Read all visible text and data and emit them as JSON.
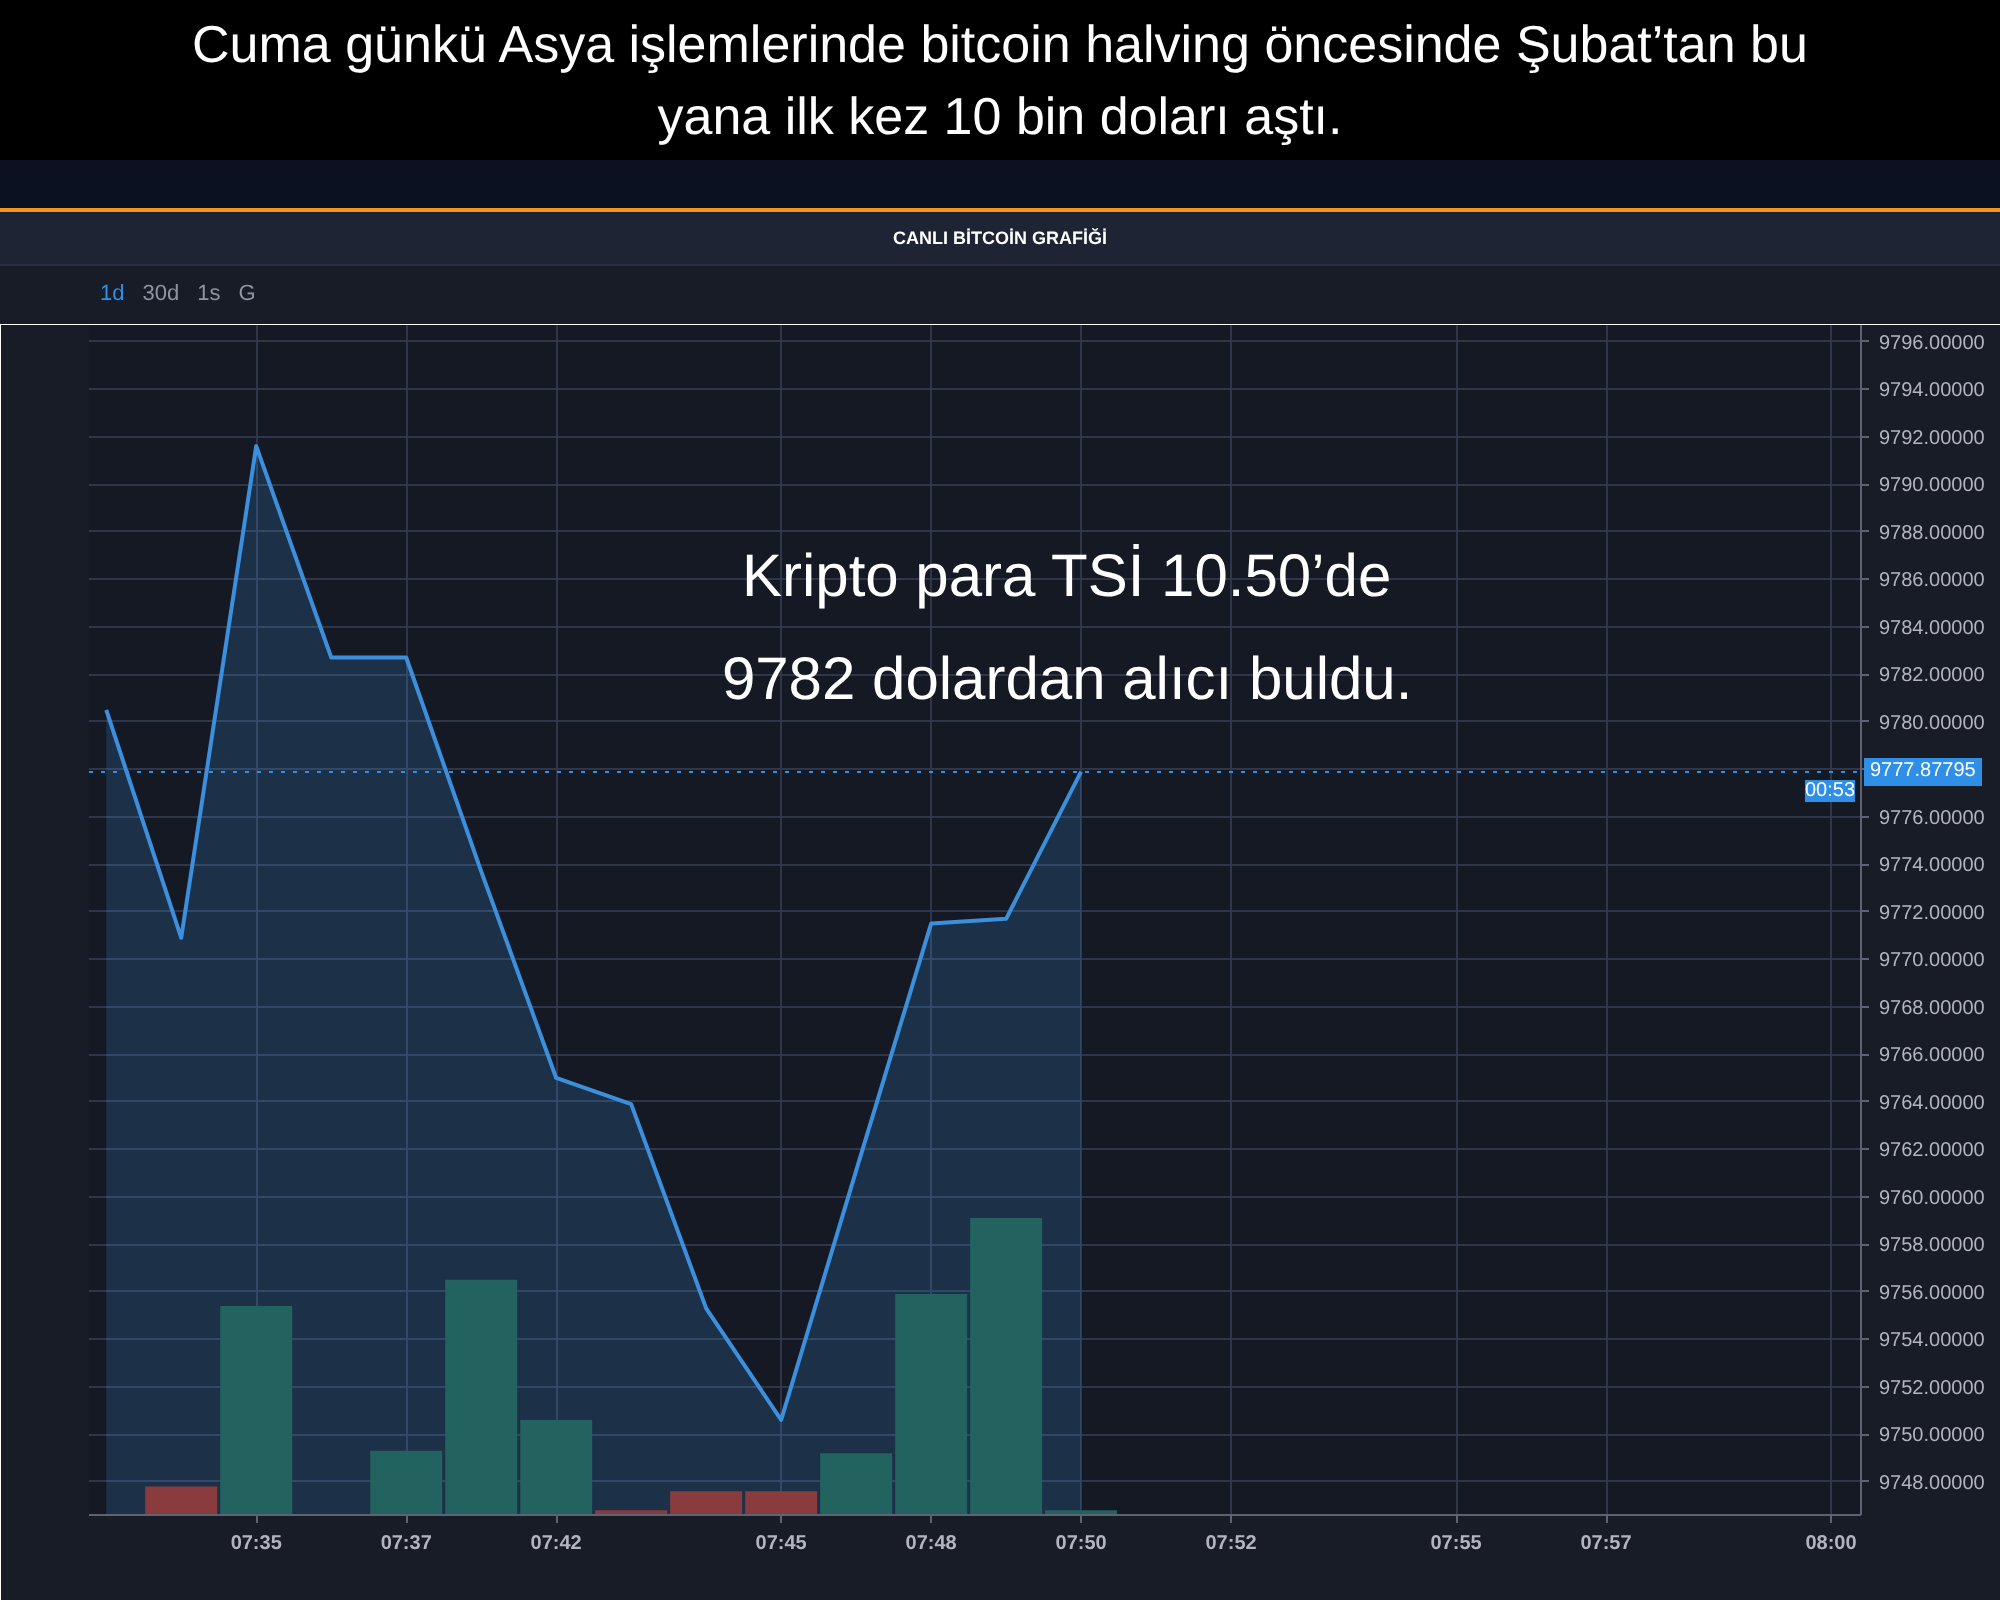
{
  "chart_data": {
    "type": "area",
    "title": "Cuma günkü Asya işlemlerinde bitcoin halving öncesinde Şubat’tan bu yana ilk kez 10 bin doları aştı.",
    "subtitle": "CANLI BİTCOİN GRAFİĞİ",
    "annotations": [
      "Kripto para TSİ 10.50’de\n9782 dolardan alıcı buldu.",
      "00:53",
      "1d",
      "30d",
      "1s",
      "G"
    ],
    "categories": [
      null,
      null,
      "07:35",
      null,
      "07:37",
      null,
      "07:42",
      null,
      null,
      "07:45",
      null,
      "07:48",
      null,
      "07:50",
      null,
      "07:52",
      null,
      null,
      "07:55",
      null,
      "07:57",
      null,
      null,
      "08:00"
    ],
    "series": [
      {
        "color": "#3b8fdc",
        "values": [
          9780.5,
          9770.9,
          9791.6,
          9782.7,
          9782.7,
          9773.7,
          9765.0,
          9763.9,
          9755.3,
          9750.6,
          9761.1,
          9771.5,
          9771.7,
          9777.9,
          null,
          null,
          null,
          null,
          null,
          null,
          null,
          null,
          null,
          null
        ]
      },
      {
        "type": "bar",
        "base": [
          null,
          9746.6,
          9746.6,
          null,
          9746.6,
          9746.6,
          9746.6,
          9746.6,
          9746.6,
          9746.6,
          9746.6,
          9746.6,
          9746.6,
          9746.6,
          null,
          null,
          null,
          null,
          null,
          null,
          null,
          null,
          null,
          null
        ],
        "values": [
          null,
          1.2,
          8.8,
          null,
          2.7,
          9.9,
          4.0,
          0.2,
          1.0,
          1.0,
          2.6,
          9.3,
          12.5,
          0.2,
          null,
          null,
          null,
          null,
          null,
          null,
          null,
          null,
          null,
          null
        ],
        "colors": [
          null,
          "#8a3b3e",
          "#22625f",
          null,
          "#22625f",
          "#22625f",
          "#22625f",
          "#8a3b3e",
          "#8a3b3e",
          "#8a3b3e",
          "#22625f",
          "#22625f",
          "#22625f",
          "#22625f",
          null,
          null,
          null,
          null,
          null,
          null,
          null,
          null,
          null,
          null
        ]
      }
    ],
    "ylim": [
      9746.6,
      9796.7
    ],
    "yticks": [
      {
        "value": 9748,
        "label": "9748.00000"
      },
      {
        "value": 9750,
        "label": "9750.00000"
      },
      {
        "value": 9752,
        "label": "9752.00000"
      },
      {
        "value": 9754,
        "label": "9754.00000"
      },
      {
        "value": 9756,
        "label": "9756.00000"
      },
      {
        "value": 9758,
        "label": "9758.00000"
      },
      {
        "value": 9760,
        "label": "9760.00000"
      },
      {
        "value": 9762,
        "label": "9762.00000"
      },
      {
        "value": 9764,
        "label": "9764.00000"
      },
      {
        "value": 9766,
        "label": "9766.00000"
      },
      {
        "value": 9768,
        "label": "9768.00000"
      },
      {
        "value": 9770,
        "label": "9770.00000"
      },
      {
        "value": 9772,
        "label": "9772.00000"
      },
      {
        "value": 9774,
        "label": "9774.00000"
      },
      {
        "value": 9776,
        "label": "9776.00000"
      },
      {
        "value": 9778,
        "label": null
      },
      {
        "value": 9780,
        "label": "9780.00000"
      },
      {
        "value": 9782,
        "label": "9782.00000"
      },
      {
        "value": 9784,
        "label": "9784.00000"
      },
      {
        "value": 9786,
        "label": "9786.00000"
      },
      {
        "value": 9788,
        "label": "9788.00000"
      },
      {
        "value": 9790,
        "label": "9790.00000"
      },
      {
        "value": 9792,
        "label": "9792.00000"
      },
      {
        "value": 9794,
        "label": "9794.00000"
      },
      {
        "value": 9796,
        "label": "9796.00000"
      }
    ],
    "ref_lines": [
      {
        "axis": "y",
        "value": 9777.87795,
        "label": "9777.87795",
        "color": "#2f8fe6",
        "line_style": "dotted"
      }
    ],
    "grid": true,
    "marker": "none",
    "line_style": "solid"
  }
}
